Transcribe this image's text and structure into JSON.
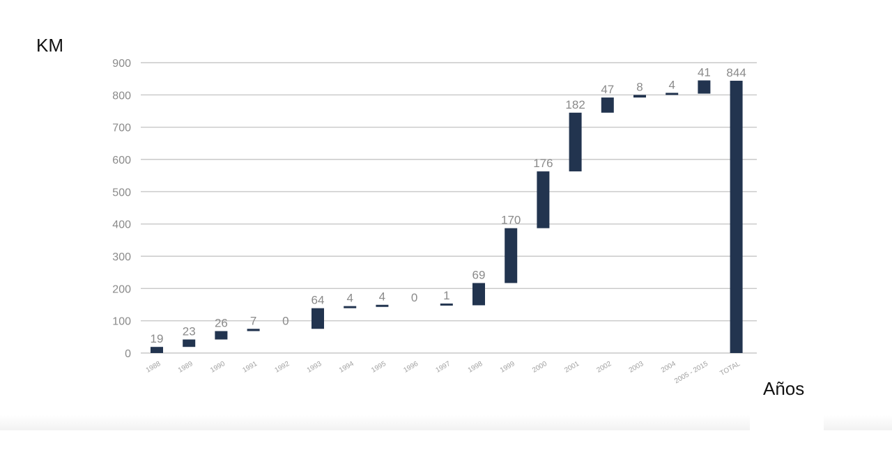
{
  "chart_data": {
    "type": "waterfall",
    "ylabel": "KM",
    "xlabel": "Años",
    "ylim": [
      0,
      900
    ],
    "yticks": [
      0,
      100,
      200,
      300,
      400,
      500,
      600,
      700,
      800,
      900
    ],
    "grid": true,
    "categories": [
      "1988",
      "1989",
      "1990",
      "1991",
      "1992",
      "1993",
      "1994",
      "1995",
      "1996",
      "1997",
      "1998",
      "1999",
      "2000",
      "2001",
      "2002",
      "2003",
      "2004",
      "2005 - 2015",
      "TOTAL"
    ],
    "values": [
      19,
      23,
      26,
      7,
      0,
      64,
      4,
      4,
      0,
      1,
      69,
      170,
      176,
      182,
      47,
      8,
      4,
      41,
      844
    ],
    "data_labels": [
      "19",
      "23",
      "26",
      "7",
      "0",
      "64",
      "4",
      "4",
      "0",
      "1",
      "69",
      "170",
      "176",
      "182",
      "47",
      "8",
      "4",
      "41",
      "844"
    ],
    "total_category": "TOTAL",
    "bar_color": "#22344f",
    "grid_color": "#c8c8c8",
    "label_color": "#8a8a8a"
  }
}
